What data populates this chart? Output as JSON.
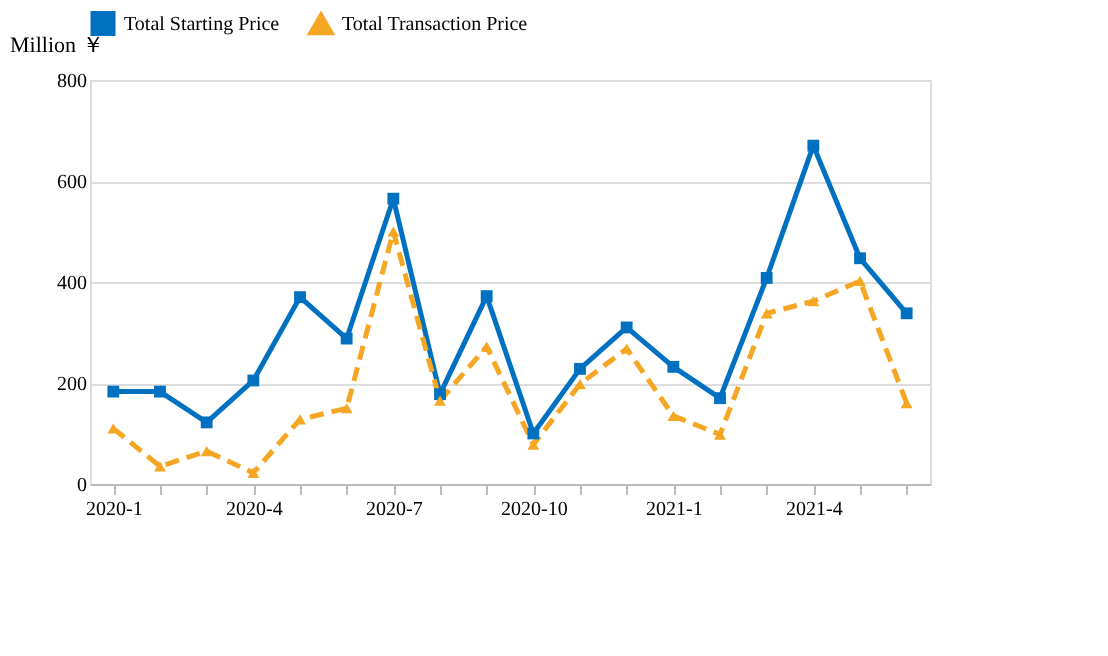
{
  "chart_data": {
    "type": "line",
    "ylabel": "Million ￥",
    "categories": [
      "2020-1",
      null,
      null,
      "2020-4",
      null,
      null,
      "2020-7",
      null,
      null,
      "2020-10",
      null,
      null,
      "2021-1",
      null,
      null,
      "2021-4",
      null,
      null
    ],
    "series": [
      {
        "name": "Total Starting Price",
        "color": "#0070c0",
        "marker": "square",
        "line_style": "solid",
        "values": [
          183,
          183,
          122,
          205,
          370,
          288,
          565,
          178,
          372,
          100,
          228,
          310,
          232,
          170,
          408,
          670,
          447,
          338
        ]
      },
      {
        "name": "Total Transaction Price",
        "color": "#f5a623",
        "marker": "triangle",
        "line_style": "dashed",
        "values": [
          110,
          35,
          65,
          22,
          128,
          150,
          500,
          165,
          272,
          78,
          198,
          268,
          135,
          98,
          338,
          362,
          402,
          160
        ]
      }
    ],
    "ylim": [
      0,
      800
    ],
    "yticks": [
      0,
      200,
      400,
      600,
      800
    ],
    "grid": "y",
    "legend": "top"
  }
}
